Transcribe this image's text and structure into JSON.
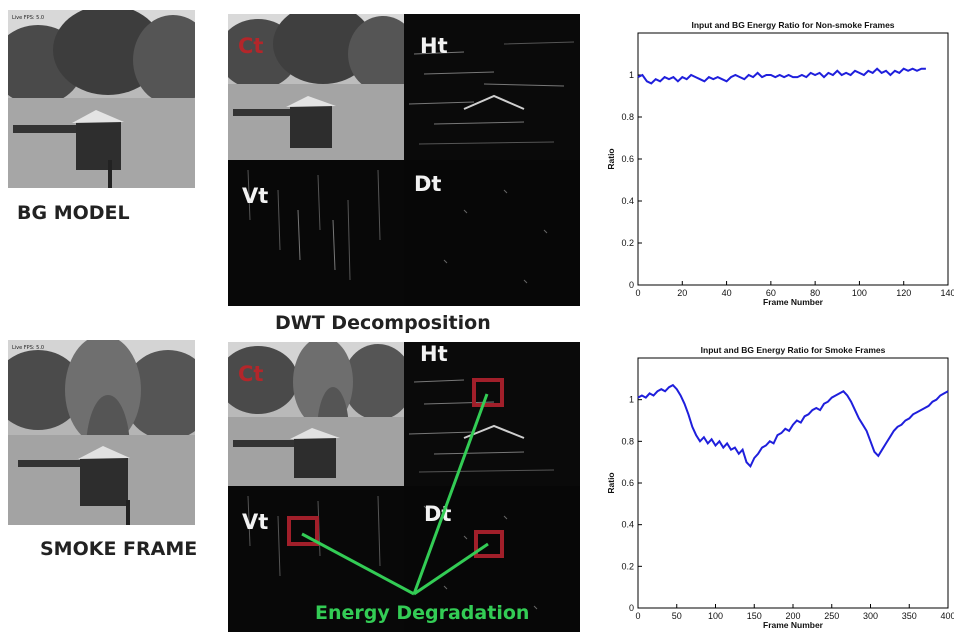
{
  "labels": {
    "bg_model": "BG MODEL",
    "smoke_frame": "SMOKE FRAME",
    "dwt": "DWT Decomposition",
    "energy": "Energy Degradation",
    "ct": "Ct",
    "ht": "Ht",
    "vt": "Vt",
    "dt": "Dt"
  },
  "colors": {
    "curve": "#1f1fdc",
    "box": "#a11f2a",
    "pointer": "#33cc55",
    "ct_text": "#b3262a"
  },
  "chart_data": [
    {
      "type": "line",
      "title": "Input and BG Energy Ratio for Non-smoke Frames",
      "xlabel": "Frame Number",
      "ylabel": "Ratio",
      "xlim": [
        0,
        140
      ],
      "ylim": [
        0,
        1.2
      ],
      "xticks": [
        0,
        20,
        40,
        60,
        80,
        100,
        120,
        140
      ],
      "yticks": [
        0,
        0.2,
        0.4,
        0.6,
        0.8,
        1
      ],
      "series": [
        {
          "x": [
            0,
            2,
            4,
            6,
            8,
            10,
            12,
            14,
            16,
            18,
            20,
            22,
            24,
            26,
            28,
            30,
            32,
            34,
            36,
            38,
            40,
            42,
            44,
            46,
            48,
            50,
            52,
            54,
            56,
            58,
            60,
            62,
            64,
            66,
            68,
            70,
            72,
            74,
            76,
            78,
            80,
            82,
            84,
            86,
            88,
            90,
            92,
            94,
            96,
            98,
            100,
            102,
            104,
            106,
            108,
            110,
            112,
            114,
            116,
            118,
            120,
            122,
            124,
            126,
            128,
            130
          ],
          "y": [
            0.99,
            1.0,
            0.97,
            0.96,
            0.98,
            0.97,
            0.99,
            0.98,
            0.99,
            0.97,
            0.99,
            0.98,
            1.0,
            0.99,
            0.98,
            0.97,
            0.99,
            0.98,
            0.99,
            0.98,
            0.97,
            0.99,
            1.0,
            0.99,
            0.98,
            1.0,
            0.99,
            1.01,
            0.99,
            1.0,
            1.0,
            0.99,
            1.0,
            0.99,
            1.0,
            0.99,
            0.99,
            1.0,
            0.99,
            1.01,
            1.0,
            1.01,
            0.99,
            1.01,
            1.0,
            1.02,
            1.0,
            1.01,
            1.0,
            1.02,
            1.01,
            1.0,
            1.02,
            1.01,
            1.03,
            1.01,
            1.02,
            1.0,
            1.02,
            1.01,
            1.03,
            1.02,
            1.03,
            1.02,
            1.03,
            1.03
          ]
        }
      ]
    },
    {
      "type": "line",
      "title": "Input and BG Energy Ratio for Smoke Frames",
      "xlabel": "Frame Number",
      "ylabel": "Ratio",
      "xlim": [
        0,
        400
      ],
      "ylim": [
        0,
        1.2
      ],
      "xticks": [
        0,
        50,
        100,
        150,
        200,
        250,
        300,
        350,
        400
      ],
      "yticks": [
        0,
        0.2,
        0.4,
        0.6,
        0.8,
        1
      ],
      "series": [
        {
          "x": [
            0,
            5,
            10,
            15,
            20,
            25,
            30,
            35,
            40,
            45,
            50,
            55,
            60,
            65,
            70,
            75,
            80,
            85,
            90,
            95,
            100,
            105,
            110,
            115,
            120,
            125,
            130,
            135,
            140,
            145,
            150,
            155,
            160,
            165,
            170,
            175,
            180,
            185,
            190,
            195,
            200,
            205,
            210,
            215,
            220,
            225,
            230,
            235,
            240,
            245,
            250,
            255,
            260,
            265,
            270,
            275,
            280,
            285,
            290,
            295,
            300,
            305,
            310,
            315,
            320,
            325,
            330,
            335,
            340,
            345,
            350,
            355,
            360,
            365,
            370,
            375,
            380,
            385,
            390,
            395,
            400
          ],
          "y": [
            1.01,
            1.02,
            1.01,
            1.03,
            1.02,
            1.04,
            1.05,
            1.04,
            1.06,
            1.07,
            1.05,
            1.02,
            0.98,
            0.93,
            0.87,
            0.83,
            0.8,
            0.82,
            0.79,
            0.81,
            0.78,
            0.8,
            0.77,
            0.79,
            0.76,
            0.77,
            0.74,
            0.76,
            0.7,
            0.68,
            0.72,
            0.74,
            0.77,
            0.78,
            0.8,
            0.79,
            0.83,
            0.84,
            0.86,
            0.85,
            0.88,
            0.9,
            0.89,
            0.92,
            0.93,
            0.95,
            0.96,
            0.95,
            0.98,
            0.99,
            1.01,
            1.02,
            1.03,
            1.04,
            1.02,
            0.99,
            0.95,
            0.91,
            0.88,
            0.85,
            0.8,
            0.75,
            0.73,
            0.76,
            0.79,
            0.82,
            0.85,
            0.87,
            0.88,
            0.9,
            0.91,
            0.93,
            0.94,
            0.95,
            0.96,
            0.97,
            0.99,
            1.0,
            1.02,
            1.03,
            1.04
          ]
        }
      ]
    }
  ]
}
